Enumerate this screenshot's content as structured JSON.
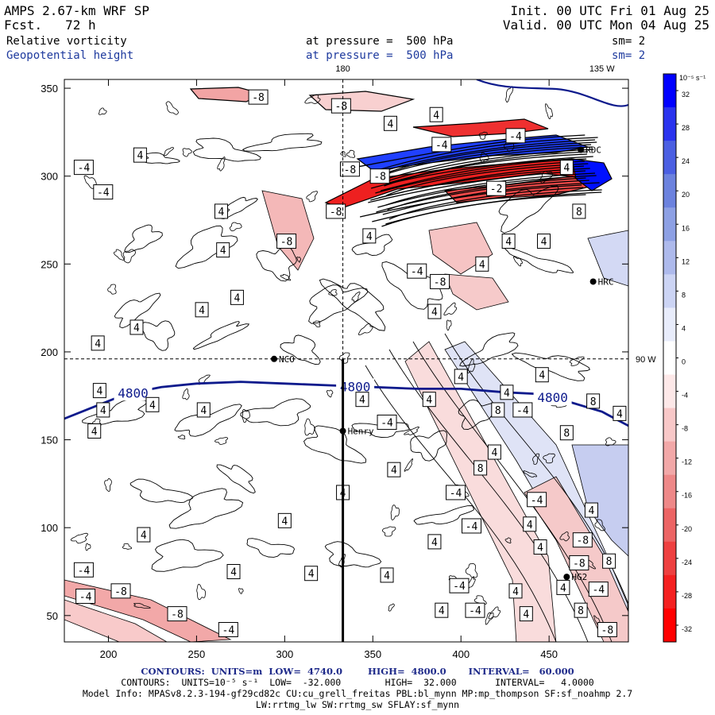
{
  "header": {
    "left_line1": "AMPS 2.67-km WRF SP",
    "left_line2": "Fcst.   72 h",
    "right_line1": "Init. 00 UTC Fri 01 Aug 25",
    "right_line2": "Valid. 00 UTC Mon 04 Aug 25",
    "field1_name": "Relative vorticity",
    "field1_level": "at pressure =  500 hPa",
    "field1_sm": "sm= 2",
    "field2_name": "Geopotential height",
    "field2_level": "at pressure =  500 hPa",
    "field2_sm": "sm= 2"
  },
  "footer": {
    "line1": "CONTOURS:  UNITS=m  LOW=  4740.0        HIGH=  4800.0       INTERVAL=   60.000",
    "line2": "CONTOURS:  UNITS=10⁻⁵ s⁻¹  LOW=  -32.000        HIGH=  32.000       INTERVAL=   4.0000",
    "line3": "Model Info: MPASv8.2.3-194-gf29cd82c CU:cu_grell_freitas PBL:bl_mynn MP:mp_thompson SF:sf_noahmp 2.7",
    "line4": "LW:rrtmg_lw SW:rrtmg_sw SFLAY:sf_mynn"
  },
  "colors": {
    "height_contour": "#0d1a8c",
    "positive_max": "#0010ff",
    "negative_max": "#ff0000"
  },
  "chart_data": {
    "type": "heatmap",
    "title": "Relative vorticity / Geopotential height at 500 hPa",
    "x_ticks": [
      200,
      250,
      300,
      350,
      400,
      450
    ],
    "y_ticks": [
      50,
      100,
      150,
      200,
      250,
      300,
      350
    ],
    "xlim": [
      175,
      495
    ],
    "ylim": [
      35,
      355
    ],
    "meridian_labels": [
      {
        "text": "180",
        "x": 333
      },
      {
        "text": "135 W",
        "x": 480
      }
    ],
    "latitude_label": {
      "text": "90 W",
      "y": 196
    },
    "colorbar": {
      "units": "10⁻⁵ s⁻¹",
      "ticks": [
        32,
        28,
        24,
        20,
        16,
        12,
        8,
        4,
        0,
        -4,
        -8,
        -12,
        -16,
        -20,
        -24,
        -28,
        -32
      ],
      "colors": [
        "#0000ff",
        "#2a33ee",
        "#4b5fe2",
        "#6c82de",
        "#8da0e4",
        "#aebaec",
        "#ccd4f4",
        "#e8ecfb",
        "#ffffff",
        "#fde8e8",
        "#f8c8c8",
        "#f2a8a8",
        "#ee8888",
        "#ec6464",
        "#ee4040",
        "#f42020",
        "#ff0000"
      ]
    },
    "height_contours": [
      {
        "label": "4800",
        "points": [
          [
            175,
            162
          ],
          [
            190,
            168
          ],
          [
            210,
            176
          ],
          [
            230,
            180
          ],
          [
            250,
            182
          ],
          [
            275,
            183
          ],
          [
            300,
            182
          ],
          [
            325,
            181
          ],
          [
            350,
            180
          ],
          [
            375,
            179
          ],
          [
            400,
            179
          ],
          [
            425,
            177
          ],
          [
            445,
            176
          ],
          [
            460,
            172
          ],
          [
            480,
            166
          ],
          [
            495,
            158
          ]
        ]
      }
    ],
    "contour_labels": [
      {
        "text": "-8",
        "x": 285,
        "y": 345
      },
      {
        "text": "-8",
        "x": 332,
        "y": 340
      },
      {
        "text": "4",
        "x": 360,
        "y": 330
      },
      {
        "text": "4",
        "x": 386,
        "y": 335
      },
      {
        "text": "-4",
        "x": 186,
        "y": 305
      },
      {
        "text": "4",
        "x": 218,
        "y": 312
      },
      {
        "text": "-4",
        "x": 197,
        "y": 291
      },
      {
        "text": "-8",
        "x": 337,
        "y": 304
      },
      {
        "text": "-8",
        "x": 354,
        "y": 300
      },
      {
        "text": "-4",
        "x": 389,
        "y": 318
      },
      {
        "text": "-4",
        "x": 431,
        "y": 323
      },
      {
        "text": "4",
        "x": 460,
        "y": 305
      },
      {
        "text": "-2",
        "x": 420,
        "y": 293
      },
      {
        "text": "8",
        "x": 467,
        "y": 280
      },
      {
        "text": "4",
        "x": 264,
        "y": 280
      },
      {
        "text": "-8",
        "x": 329,
        "y": 280
      },
      {
        "text": "4",
        "x": 348,
        "y": 266
      },
      {
        "text": "-8",
        "x": 301,
        "y": 263
      },
      {
        "text": "4",
        "x": 265,
        "y": 258
      },
      {
        "text": "4",
        "x": 427,
        "y": 263
      },
      {
        "text": "4",
        "x": 447,
        "y": 263
      },
      {
        "text": "-4",
        "x": 375,
        "y": 246
      },
      {
        "text": "-8",
        "x": 388,
        "y": 240
      },
      {
        "text": "4",
        "x": 412,
        "y": 250
      },
      {
        "text": "4",
        "x": 273,
        "y": 231
      },
      {
        "text": "4",
        "x": 253,
        "y": 224
      },
      {
        "text": "4",
        "x": 385,
        "y": 223
      },
      {
        "text": "4",
        "x": 216,
        "y": 214
      },
      {
        "text": "4",
        "x": 194,
        "y": 205
      },
      {
        "text": "4",
        "x": 400,
        "y": 186
      },
      {
        "text": "4",
        "x": 426,
        "y": 177
      },
      {
        "text": "4",
        "x": 446,
        "y": 187
      },
      {
        "text": "4",
        "x": 195,
        "y": 178
      },
      {
        "text": "4",
        "x": 225,
        "y": 170
      },
      {
        "text": "4",
        "x": 197,
        "y": 167
      },
      {
        "text": "4",
        "x": 254,
        "y": 167
      },
      {
        "text": "4",
        "x": 344,
        "y": 173
      },
      {
        "text": "4",
        "x": 382,
        "y": 173
      },
      {
        "text": "-4",
        "x": 358,
        "y": 160
      },
      {
        "text": "8",
        "x": 421,
        "y": 167
      },
      {
        "text": "-4",
        "x": 435,
        "y": 167
      },
      {
        "text": "8",
        "x": 475,
        "y": 172
      },
      {
        "text": "4",
        "x": 490,
        "y": 165
      },
      {
        "text": "8",
        "x": 460,
        "y": 154
      },
      {
        "text": "4",
        "x": 192,
        "y": 155
      },
      {
        "text": "4",
        "x": 419,
        "y": 143
      },
      {
        "text": "4",
        "x": 362,
        "y": 133
      },
      {
        "text": "8",
        "x": 411,
        "y": 134
      },
      {
        "text": "-4",
        "x": 397,
        "y": 120
      },
      {
        "text": "4",
        "x": 333,
        "y": 120
      },
      {
        "text": "-4",
        "x": 443,
        "y": 116
      },
      {
        "text": "4",
        "x": 474,
        "y": 110
      },
      {
        "text": "4",
        "x": 300,
        "y": 104
      },
      {
        "text": "-4",
        "x": 406,
        "y": 101
      },
      {
        "text": "4",
        "x": 439,
        "y": 102
      },
      {
        "text": "-8",
        "x": 469,
        "y": 93
      },
      {
        "text": "4",
        "x": 220,
        "y": 96
      },
      {
        "text": "4",
        "x": 385,
        "y": 92
      },
      {
        "text": "4",
        "x": 445,
        "y": 89
      },
      {
        "text": "8",
        "x": 484,
        "y": 81
      },
      {
        "text": "-8",
        "x": 467,
        "y": 80
      },
      {
        "text": "4",
        "x": 271,
        "y": 75
      },
      {
        "text": "-4",
        "x": 186,
        "y": 76
      },
      {
        "text": "4",
        "x": 315,
        "y": 74
      },
      {
        "text": "4",
        "x": 358,
        "y": 73
      },
      {
        "text": "-4",
        "x": 399,
        "y": 67
      },
      {
        "text": "4",
        "x": 431,
        "y": 64
      },
      {
        "text": "4",
        "x": 458,
        "y": 66
      },
      {
        "text": "-4",
        "x": 478,
        "y": 65
      },
      {
        "text": "-8",
        "x": 207,
        "y": 64
      },
      {
        "text": "-4",
        "x": 187,
        "y": 61
      },
      {
        "text": "4",
        "x": 389,
        "y": 53
      },
      {
        "text": "-4",
        "x": 408,
        "y": 53
      },
      {
        "text": "4",
        "x": 437,
        "y": 51
      },
      {
        "text": "8",
        "x": 468,
        "y": 53
      },
      {
        "text": "-8",
        "x": 239,
        "y": 51
      },
      {
        "text": "-4",
        "x": 268,
        "y": 42
      },
      {
        "text": "-8",
        "x": 483,
        "y": 42
      }
    ],
    "stations": [
      {
        "name": "NCO",
        "x": 294,
        "y": 196
      },
      {
        "name": "Henry",
        "x": 333,
        "y": 155
      },
      {
        "name": "HRC",
        "x": 475,
        "y": 240
      },
      {
        "name": "RDC",
        "x": 468,
        "y": 315
      },
      {
        "name": "HG2",
        "x": 460,
        "y": 72
      }
    ]
  }
}
